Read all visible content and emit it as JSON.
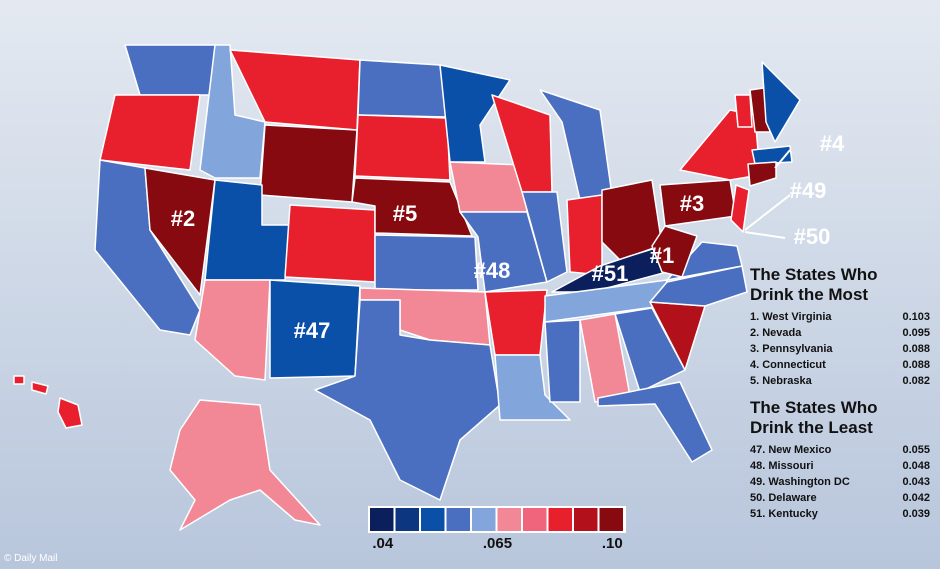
{
  "map": {
    "rank_labels": [
      "#2",
      "#5",
      "#3",
      "#1",
      "#4",
      "#49",
      "#50",
      "#48",
      "#51",
      "#47"
    ]
  },
  "legend": {
    "colors": [
      "#0a1f5c",
      "#0c3680",
      "#0a50a8",
      "#4a6fc0",
      "#82a6dc",
      "#f28896",
      "#f0647c",
      "#e8202e",
      "#b2101a",
      "#860a10"
    ],
    "labels": [
      ".04",
      ".065",
      ".10"
    ]
  },
  "most": {
    "title_lines": [
      "The States Who",
      "Drink the Most"
    ],
    "rows": [
      [
        "1. West Virginia",
        "0.103"
      ],
      [
        "2. Nevada",
        "0.095"
      ],
      [
        "3. Pennsylvania",
        "0.088"
      ],
      [
        "4. Connecticut",
        "0.088"
      ],
      [
        "5. Nebraska",
        "0.082"
      ]
    ]
  },
  "least": {
    "title_lines": [
      "The States Who",
      "Drink the Least"
    ],
    "rows": [
      [
        "47. New Mexico",
        "0.055"
      ],
      [
        "48. Missouri",
        "0.048"
      ],
      [
        "49. Washington DC",
        "0.043"
      ],
      [
        "50. Delaware",
        "0.042"
      ],
      [
        "51. Kentucky",
        "0.039"
      ]
    ]
  },
  "credit": "© Daily Mail"
}
